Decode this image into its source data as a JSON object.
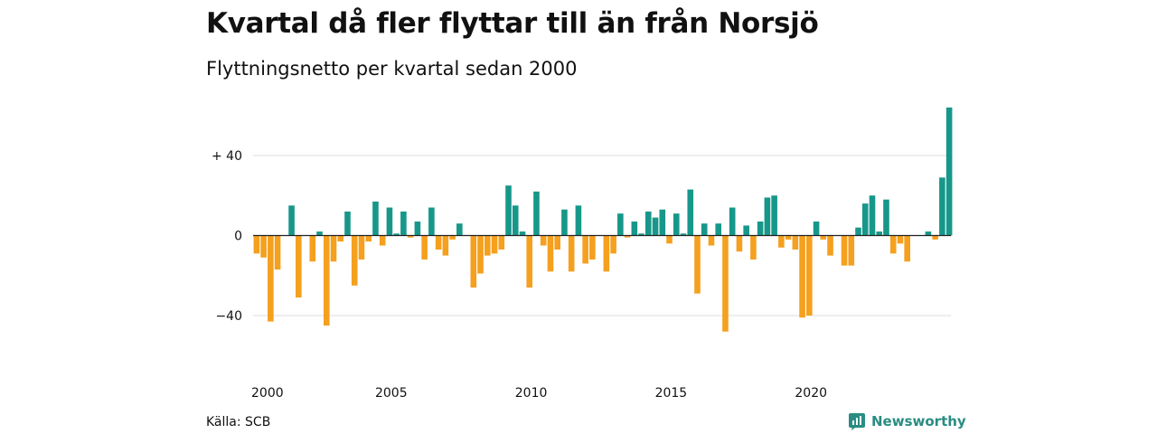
{
  "header": {
    "title": "Kvartal då fler flyttar till än från Norsjö",
    "subtitle": "Flyttningsnetto per kvartal sedan 2000"
  },
  "footer": {
    "source": "Källa: SCB",
    "brand": "Newsworthy"
  },
  "colors": {
    "positive": "#17978a",
    "negative": "#f5a01e",
    "grid": "#dddddd",
    "axis": "#222222"
  },
  "chart_data": {
    "type": "bar",
    "title": "Kvartal då fler flyttar till än från Norsjö",
    "subtitle": "Flyttningsnetto per kvartal sedan 2000",
    "xlabel": "",
    "ylabel": "",
    "x_ticks": [
      "2000",
      "2005",
      "2010",
      "2015",
      "2020"
    ],
    "y_ticks": [
      {
        "value": 40,
        "label": "+ 40"
      },
      {
        "value": 0,
        "label": "0"
      },
      {
        "value": -40,
        "label": "−40"
      }
    ],
    "ylim": [
      -60,
      64
    ],
    "grid": true,
    "legend": "none",
    "start_quarter": "2000 K1",
    "values": [
      -9,
      -11,
      -43,
      -17,
      0,
      15,
      -31,
      0,
      -13,
      2,
      -45,
      -13,
      -3,
      12,
      -25,
      -12,
      -3,
      17,
      -5,
      14,
      1,
      12,
      -1,
      7,
      -12,
      14,
      -7,
      -10,
      -2,
      6,
      0,
      -26,
      -19,
      -10,
      -9,
      -7,
      25,
      15,
      2,
      -26,
      22,
      -5,
      -18,
      -7,
      13,
      -18,
      15,
      -14,
      -12,
      0,
      -18,
      -9,
      11,
      -1,
      7,
      1,
      12,
      9,
      13,
      -4,
      11,
      1,
      23,
      -29,
      6,
      -5,
      6,
      -48,
      14,
      -8,
      5,
      -12,
      7,
      19,
      20,
      -6,
      -2,
      -7,
      -41,
      -40,
      7,
      -2,
      -10,
      0,
      -15,
      -15,
      4,
      16,
      20,
      2,
      18,
      -9,
      -4,
      -13,
      0,
      0,
      2,
      -2,
      29,
      64
    ]
  }
}
